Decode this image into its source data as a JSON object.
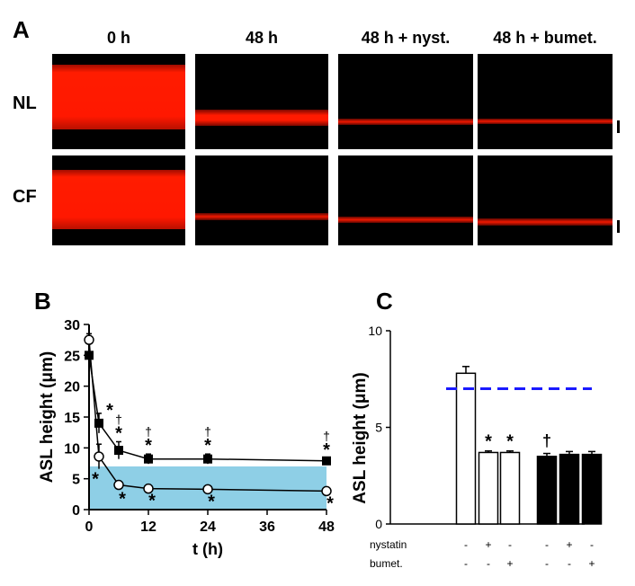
{
  "panel_a": {
    "letter": "A",
    "columns": [
      "0 h",
      "48 h",
      "48 h + nyst.",
      "48 h + bumet."
    ],
    "rows": [
      {
        "label": "NL",
        "band_widths": [
          "wide",
          "medium",
          "thin",
          "thin"
        ]
      },
      {
        "label": "CF",
        "band_widths": [
          "wide",
          "thin",
          "thin",
          "thin"
        ]
      }
    ],
    "colors": {
      "background": "#000000",
      "fluorescence": "#ff1a00"
    }
  },
  "panel_b": {
    "letter": "B",
    "ylabel": "ASL height (μm)",
    "xlabel": "t (h)",
    "yticks": [
      "0",
      "5",
      "10",
      "15",
      "20",
      "25",
      "30"
    ],
    "xticks": [
      "0",
      "12",
      "24",
      "36",
      "48"
    ]
  },
  "panel_c": {
    "letter": "C",
    "ylabel": "ASL height (μm)",
    "yticks": [
      "0",
      "5",
      "10"
    ],
    "row_labels": [
      "nystatin",
      "bumet."
    ],
    "nystatin_signs": [
      "-",
      "+",
      "-",
      "-",
      "+",
      "-"
    ],
    "bumet_signs": [
      "-",
      "-",
      "+",
      "-",
      "-",
      "+"
    ],
    "markers": [
      "",
      "*",
      "*",
      "†",
      "",
      ""
    ]
  },
  "chart_data": [
    {
      "type": "line",
      "xlabel": "t (h)",
      "ylabel": "ASL height (μm)",
      "xlim": [
        0,
        48
      ],
      "ylim": [
        0,
        30
      ],
      "shaded_band": [
        0,
        7
      ],
      "shaded_color": "#8ecfe6",
      "series": [
        {
          "marker": "filled-square",
          "x": [
            0,
            2,
            6,
            12,
            24,
            48
          ],
          "y": [
            25,
            14,
            9.6,
            8.2,
            8.2,
            7.9
          ],
          "err": [
            2.0,
            1.6,
            1.4,
            0.8,
            0.8,
            0.4
          ],
          "markers_above": [
            "",
            "*",
            "†*",
            "†*",
            "†*",
            "†*"
          ]
        },
        {
          "marker": "open-circle",
          "x": [
            0,
            2,
            6,
            12,
            24,
            48
          ],
          "y": [
            27.5,
            8.6,
            4.0,
            3.4,
            3.3,
            3.0
          ],
          "err": [
            1.0,
            2.0,
            0.6,
            0.3,
            0.3,
            0.3
          ],
          "markers_below": [
            "",
            "*",
            "*",
            "*",
            "*",
            "*"
          ]
        }
      ]
    },
    {
      "type": "bar",
      "ylabel": "ASL height (μm)",
      "ylim": [
        0,
        10
      ],
      "reference_line": 7.0,
      "reference_color": "#1a1aff",
      "groups": [
        {
          "fill": "open",
          "values": [
            7.8,
            3.7,
            3.7
          ],
          "err": [
            0.35,
            0.08,
            0.08
          ]
        },
        {
          "fill": "filled",
          "values": [
            3.5,
            3.6,
            3.6
          ],
          "err": [
            0.15,
            0.15,
            0.15
          ]
        }
      ]
    }
  ]
}
